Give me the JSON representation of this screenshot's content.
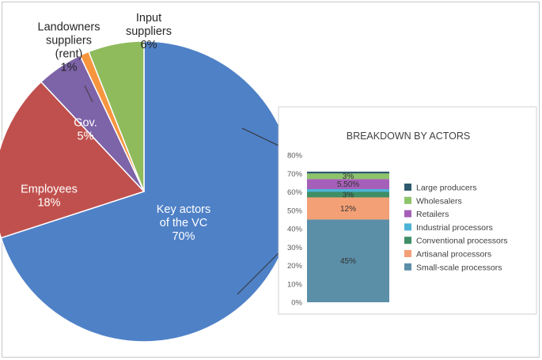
{
  "chart_data": [
    {
      "type": "pie",
      "title": "",
      "slices": [
        {
          "label_lines": [
            "Key actors",
            "of the VC"
          ],
          "value": 70,
          "value_label": "70%",
          "color": "#4f81c7"
        },
        {
          "label_lines": [
            "Employees"
          ],
          "value": 18,
          "value_label": "18%",
          "color": "#c0504d"
        },
        {
          "label_lines": [
            "Gov."
          ],
          "value": 5,
          "value_label": "5%",
          "color": "#7d63a8"
        },
        {
          "label_lines": [
            "Landowners",
            "suppliers",
            "(rent)"
          ],
          "value": 1,
          "value_label": "1%",
          "color": "#f7953e"
        },
        {
          "label_lines": [
            "Input",
            "suppliers"
          ],
          "value": 6,
          "value_label": "6%",
          "color": "#8fbb5c"
        }
      ]
    },
    {
      "type": "bar",
      "stacked": true,
      "title": "BREAKDOWN BY ACTORS",
      "ylim": [
        0,
        80
      ],
      "yticks": [
        "0%",
        "10%",
        "20%",
        "30%",
        "40%",
        "50%",
        "60%",
        "70%",
        "80%"
      ],
      "legend_position": "right",
      "series": [
        {
          "name": "Small-scale processors",
          "value": 45,
          "value_label": "45%",
          "color": "#5b8fa8"
        },
        {
          "name": "Artisanal processors",
          "value": 12,
          "value_label": "12%",
          "color": "#f4a076"
        },
        {
          "name": "Conventional processors",
          "value": 3,
          "value_label": "3%",
          "color": "#3f8e65"
        },
        {
          "name": "Industrial processors",
          "value": 1.5,
          "value_label": "",
          "color": "#4cb3d6"
        },
        {
          "name": "Retailers",
          "value": 5.5,
          "value_label": "5.50%",
          "color": "#a65fb8"
        },
        {
          "name": "Wholesalers",
          "value": 3,
          "value_label": "3%",
          "color": "#8dc46a"
        },
        {
          "name": "Large producers",
          "value": 1,
          "value_label": "",
          "color": "#2e5a6e"
        }
      ]
    }
  ]
}
